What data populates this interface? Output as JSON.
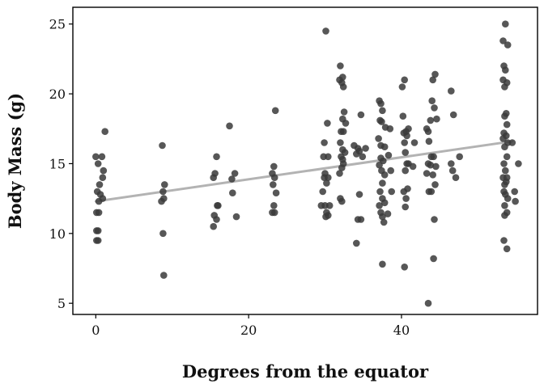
{
  "chart_data": {
    "type": "scatter",
    "xlabel": "Degrees from the equator",
    "ylabel": "Body Mass (g)",
    "xlim": [
      -3,
      57.8
    ],
    "ylim": [
      4.2,
      26.2
    ],
    "x_ticks": [
      0,
      20,
      40
    ],
    "y_ticks": [
      5,
      10,
      15,
      20,
      25
    ],
    "grid": false,
    "legend": "none",
    "colors": {
      "points": "#3a3a3a",
      "trend": "#b3b3b3",
      "frame": "#000000"
    },
    "trend_line": {
      "x": [
        0,
        54.5
      ],
      "y": [
        12.3,
        16.6
      ]
    },
    "points": [
      [
        0,
        15.5
      ],
      [
        0.3,
        15
      ],
      [
        0.8,
        15.5
      ],
      [
        1.2,
        17.3
      ],
      [
        0.9,
        14
      ],
      [
        0.5,
        13.5
      ],
      [
        1,
        14.5
      ],
      [
        0.2,
        13
      ],
      [
        0.6,
        12.8
      ],
      [
        0.9,
        12.5
      ],
      [
        0.4,
        12.3
      ],
      [
        0.1,
        11.5
      ],
      [
        0.4,
        11.5
      ],
      [
        0.1,
        10.2
      ],
      [
        0.3,
        10.2
      ],
      [
        0.1,
        9.5
      ],
      [
        0.3,
        9.5
      ],
      [
        8.7,
        16.3
      ],
      [
        9,
        13.5
      ],
      [
        8.8,
        13
      ],
      [
        8.9,
        12.5
      ],
      [
        8.6,
        12.3
      ],
      [
        8.8,
        10
      ],
      [
        8.9,
        7
      ],
      [
        15.8,
        15.5
      ],
      [
        15.6,
        14.3
      ],
      [
        15.4,
        14
      ],
      [
        15.9,
        12
      ],
      [
        16,
        12
      ],
      [
        15.5,
        11.3
      ],
      [
        15.8,
        11
      ],
      [
        15.4,
        10.5
      ],
      [
        17.5,
        17.7
      ],
      [
        17.8,
        13.9
      ],
      [
        18.2,
        14.3
      ],
      [
        17.9,
        12.9
      ],
      [
        18.4,
        11.2
      ],
      [
        23.5,
        18.8
      ],
      [
        23.3,
        14.8
      ],
      [
        23.1,
        14.3
      ],
      [
        23.4,
        14
      ],
      [
        23.2,
        13.5
      ],
      [
        23.6,
        12.9
      ],
      [
        23.3,
        12
      ],
      [
        23.1,
        11.5
      ],
      [
        23.4,
        11.5
      ],
      [
        30.1,
        24.5
      ],
      [
        30.3,
        17.9
      ],
      [
        29.9,
        16.5
      ],
      [
        29.8,
        15.5
      ],
      [
        30.4,
        15.5
      ],
      [
        30,
        14.3
      ],
      [
        29.9,
        14
      ],
      [
        30.4,
        14
      ],
      [
        30.2,
        13.6
      ],
      [
        29.7,
        13
      ],
      [
        30,
        12
      ],
      [
        29.5,
        12
      ],
      [
        30.6,
        12
      ],
      [
        30.2,
        11.5
      ],
      [
        30.4,
        11.3
      ],
      [
        30.1,
        11.2
      ],
      [
        32,
        22
      ],
      [
        32.3,
        21.2
      ],
      [
        31.9,
        21
      ],
      [
        32.2,
        20.8
      ],
      [
        32.4,
        20.5
      ],
      [
        32.5,
        18.7
      ],
      [
        32.3,
        18.2
      ],
      [
        32.7,
        17.9
      ],
      [
        32.1,
        17.3
      ],
      [
        32.4,
        17.3
      ],
      [
        32,
        16.5
      ],
      [
        32.3,
        16
      ],
      [
        32.6,
        15.8
      ],
      [
        32.1,
        15.5
      ],
      [
        32.3,
        15.3
      ],
      [
        32.4,
        15
      ],
      [
        32.2,
        14.7
      ],
      [
        31.9,
        14.3
      ],
      [
        32,
        12.5
      ],
      [
        32.2,
        12.3
      ],
      [
        33.8,
        16.3
      ],
      [
        34.3,
        16.1
      ],
      [
        34.9,
        15.5
      ],
      [
        34.5,
        15.9
      ],
      [
        34.7,
        18.5
      ],
      [
        34.1,
        15.7
      ],
      [
        34.5,
        12.8
      ],
      [
        34.3,
        11
      ],
      [
        34.7,
        11
      ],
      [
        34.1,
        9.3
      ],
      [
        35.3,
        16.1
      ],
      [
        37.1,
        19.5
      ],
      [
        37.3,
        19.3
      ],
      [
        37.5,
        18.8
      ],
      [
        37.2,
        18.1
      ],
      [
        37.4,
        18
      ],
      [
        37.9,
        17.6
      ],
      [
        37,
        16.8
      ],
      [
        37.3,
        16.3
      ],
      [
        37.8,
        16.2
      ],
      [
        37.3,
        15.4
      ],
      [
        37.6,
        15.2
      ],
      [
        37.1,
        14.9
      ],
      [
        37.4,
        14.5
      ],
      [
        37.8,
        14.2
      ],
      [
        37.5,
        13.6
      ],
      [
        37.2,
        13
      ],
      [
        37.5,
        12.5
      ],
      [
        37.8,
        12.2
      ],
      [
        37.1,
        12
      ],
      [
        37.3,
        11.5
      ],
      [
        37.5,
        11.2
      ],
      [
        37.7,
        10.8
      ],
      [
        37.5,
        7.8
      ],
      [
        38.5,
        17.5
      ],
      [
        38.3,
        15.6
      ],
      [
        38.6,
        14.5
      ],
      [
        38.7,
        13
      ],
      [
        38.2,
        11.4
      ],
      [
        40.1,
        20.5
      ],
      [
        40.4,
        21
      ],
      [
        40.2,
        18.4
      ],
      [
        40.6,
        17.3
      ],
      [
        40.9,
        17.5
      ],
      [
        40.3,
        17.2
      ],
      [
        40.7,
        17
      ],
      [
        40.4,
        16.5
      ],
      [
        40.5,
        15.8
      ],
      [
        40.7,
        15
      ],
      [
        40.9,
        15
      ],
      [
        40.5,
        14.5
      ],
      [
        40.8,
        13.2
      ],
      [
        40.3,
        13
      ],
      [
        40.6,
        12.5
      ],
      [
        40.5,
        11.9
      ],
      [
        40.4,
        7.6
      ],
      [
        41.5,
        14.8
      ],
      [
        41.7,
        16.5
      ],
      [
        43.5,
        17.3
      ],
      [
        43.8,
        18.1
      ],
      [
        43.3,
        17.5
      ],
      [
        43.6,
        16.6
      ],
      [
        43.9,
        15.5
      ],
      [
        43.5,
        15
      ],
      [
        43.8,
        14.9
      ],
      [
        43.3,
        14.3
      ],
      [
        43.6,
        13
      ],
      [
        43.9,
        13
      ],
      [
        43.5,
        5
      ],
      [
        44.1,
        21
      ],
      [
        44.4,
        21.4
      ],
      [
        44,
        19.5
      ],
      [
        44.3,
        19
      ],
      [
        44.6,
        18.2
      ],
      [
        44.2,
        15.5
      ],
      [
        44.5,
        14.8
      ],
      [
        44.1,
        14.2
      ],
      [
        44.4,
        13.5
      ],
      [
        44.3,
        11
      ],
      [
        44.2,
        8.2
      ],
      [
        46.5,
        20.2
      ],
      [
        46.8,
        18.5
      ],
      [
        46.5,
        15
      ],
      [
        46.7,
        14.5
      ],
      [
        47.1,
        14
      ],
      [
        47.6,
        15.5
      ],
      [
        53.3,
        23.8
      ],
      [
        53.6,
        25
      ],
      [
        53.9,
        23.5
      ],
      [
        53.4,
        22
      ],
      [
        53.6,
        21.7
      ],
      [
        53.3,
        21
      ],
      [
        53.8,
        20.8
      ],
      [
        53.5,
        20.5
      ],
      [
        53.7,
        18.6
      ],
      [
        53.5,
        18.4
      ],
      [
        53.8,
        17.8
      ],
      [
        53.4,
        17.2
      ],
      [
        53.7,
        17
      ],
      [
        53.3,
        16.8
      ],
      [
        53.9,
        16.5
      ],
      [
        53.5,
        16.2
      ],
      [
        53.8,
        15.5
      ],
      [
        53.4,
        15
      ],
      [
        53.6,
        14.5
      ],
      [
        53.3,
        14
      ],
      [
        53.8,
        14
      ],
      [
        53.5,
        13.5
      ],
      [
        53.7,
        13.7
      ],
      [
        53.4,
        13
      ],
      [
        53.6,
        12.8
      ],
      [
        53.9,
        12.5
      ],
      [
        53.5,
        12
      ],
      [
        53.8,
        11.5
      ],
      [
        53.5,
        11.3
      ],
      [
        53.4,
        9.5
      ],
      [
        53.8,
        8.9
      ],
      [
        54.5,
        16.5
      ],
      [
        54.8,
        13
      ],
      [
        54.9,
        12.3
      ],
      [
        55.3,
        15
      ]
    ]
  }
}
